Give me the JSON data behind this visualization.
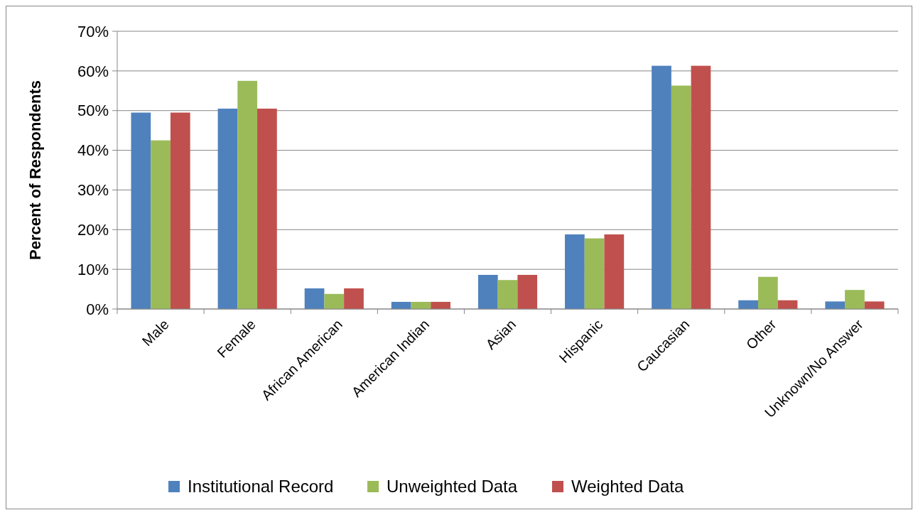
{
  "chart_data": {
    "type": "bar",
    "ylabel": "Percent of Respondents",
    "categories": [
      "Male",
      "Female",
      "African American",
      "American Indian",
      "Asian",
      "Hispanic",
      "Caucasian",
      "Other",
      "Unknown/No Answer"
    ],
    "series": [
      {
        "name": "Institutional Record",
        "color": "#4f81bd",
        "values": [
          49.5,
          50.5,
          5.2,
          1.8,
          8.6,
          18.8,
          61.3,
          2.2,
          1.9
        ]
      },
      {
        "name": "Unweighted Data",
        "color": "#9bbb59",
        "values": [
          42.5,
          57.5,
          3.8,
          1.8,
          7.3,
          17.8,
          56.3,
          8.1,
          4.8
        ]
      },
      {
        "name": "Weighted Data",
        "color": "#c0504d",
        "values": [
          49.5,
          50.5,
          5.2,
          1.8,
          8.6,
          18.8,
          61.3,
          2.2,
          1.9
        ]
      }
    ],
    "ylim": [
      0,
      70
    ],
    "yticks": [
      {
        "value": 0,
        "label": "0%"
      },
      {
        "value": 10,
        "label": "10%"
      },
      {
        "value": 20,
        "label": "20%"
      },
      {
        "value": 30,
        "label": "30%"
      },
      {
        "value": 40,
        "label": "40%"
      },
      {
        "value": 50,
        "label": "50%"
      },
      {
        "value": 60,
        "label": "60%"
      },
      {
        "value": 70,
        "label": "70%"
      }
    ],
    "grid": "y",
    "legend": "bottom"
  }
}
